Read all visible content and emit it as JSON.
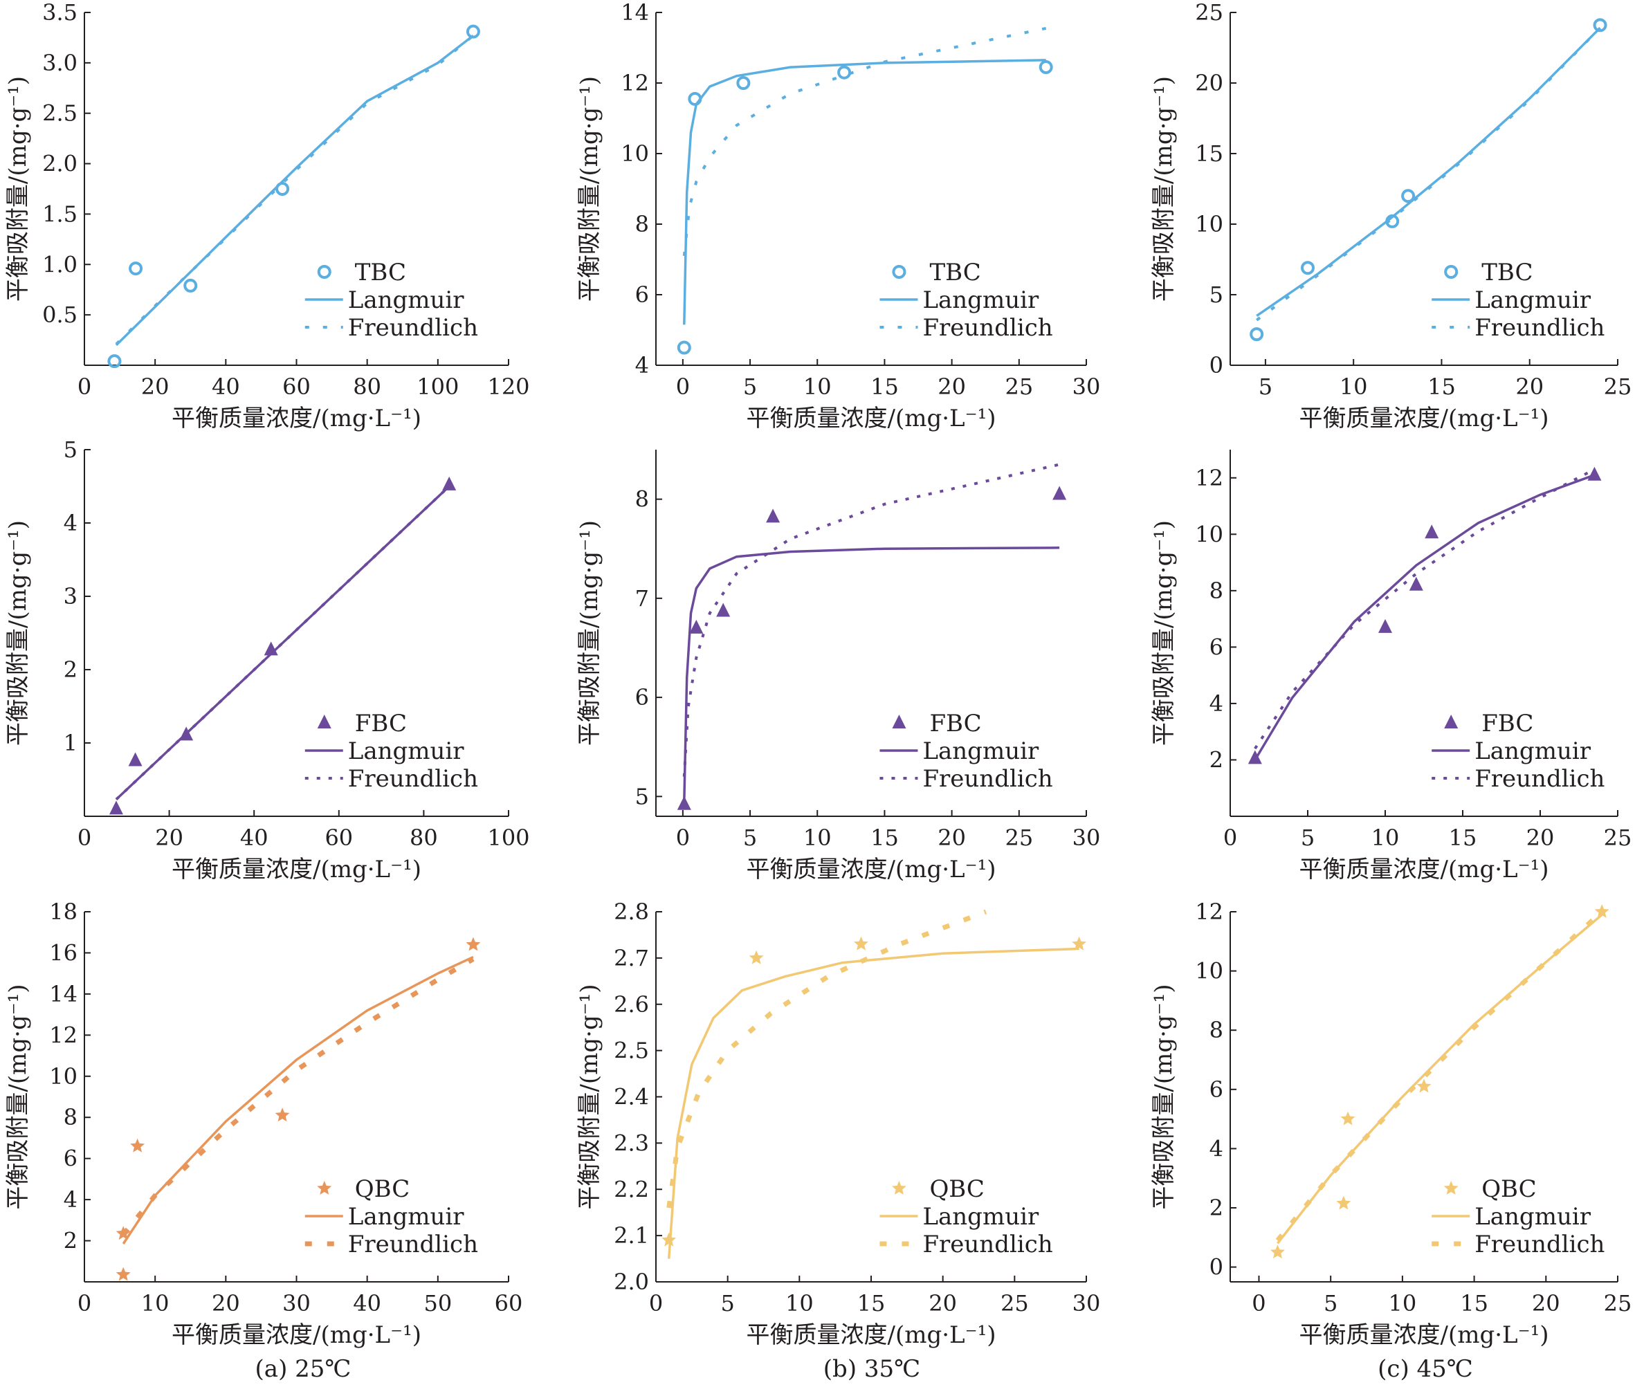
{
  "chart_data": [
    {
      "id": "tbc25",
      "type": "scatter",
      "xlabel": "平衡质量浓度/(mg·L⁻¹)",
      "ylabel": "平衡吸附量/(mg·g⁻¹)",
      "xlim": [
        0,
        120
      ],
      "ylim": [
        0,
        3.5
      ],
      "xticks": [
        0,
        20,
        40,
        60,
        80,
        100,
        120
      ],
      "yticks": [
        0.5,
        1.0,
        1.5,
        2.0,
        2.5,
        3.0,
        3.5
      ],
      "yticklabels": [
        "0.5",
        "1.0",
        "1.5",
        "2.0",
        "2.5",
        "3.0",
        "3.5"
      ],
      "marker": "circle",
      "color": "#5aaee0",
      "series": [
        {
          "name": "TBC",
          "x": [
            8.5,
            14.5,
            30,
            56,
            110
          ],
          "y": [
            0.04,
            0.96,
            0.79,
            1.75,
            3.31
          ]
        },
        {
          "name": "Langmuir",
          "x": [
            9,
            20,
            40,
            60,
            80,
            100,
            110
          ],
          "y": [
            0.2,
            0.58,
            1.27,
            1.96,
            2.62,
            3.0,
            3.27
          ]
        },
        {
          "name": "Freundlich",
          "x": [
            9,
            20,
            40,
            60,
            80,
            100,
            110
          ],
          "y": [
            0.21,
            0.59,
            1.26,
            1.94,
            2.6,
            2.98,
            3.27
          ]
        }
      ],
      "legend": [
        "TBC",
        "Langmuir",
        "Freundlich"
      ]
    },
    {
      "id": "tbc35",
      "type": "scatter",
      "xlabel": "平衡质量浓度/(mg·L⁻¹)",
      "ylabel": "平衡吸附量/(mg·g⁻¹)",
      "xlim": [
        -2,
        30
      ],
      "ylim": [
        4,
        14
      ],
      "xticks": [
        0,
        5,
        10,
        15,
        20,
        25,
        30
      ],
      "yticks": [
        4,
        6,
        8,
        10,
        12,
        14
      ],
      "marker": "circle",
      "color": "#5aaee0",
      "series": [
        {
          "name": "TBC",
          "x": [
            0.1,
            0.9,
            4.5,
            12,
            27
          ],
          "y": [
            4.5,
            11.55,
            12,
            12.3,
            12.45
          ]
        },
        {
          "name": "Langmuir",
          "x": [
            0.1,
            0.3,
            0.6,
            1,
            2,
            4,
            8,
            15,
            27
          ],
          "y": [
            5.15,
            8.9,
            10.6,
            11.4,
            11.9,
            12.2,
            12.45,
            12.57,
            12.65
          ]
        },
        {
          "name": "Freundlich",
          "x": [
            0.1,
            0.5,
            1,
            2,
            4,
            8,
            15,
            27
          ],
          "y": [
            7.1,
            8.5,
            9.2,
            9.9,
            10.8,
            11.7,
            12.6,
            13.55
          ]
        }
      ],
      "legend": [
        "TBC",
        "Langmuir",
        "Freundlich"
      ]
    },
    {
      "id": "tbc45",
      "type": "scatter",
      "xlabel": "平衡质量浓度/(mg·L⁻¹)",
      "ylabel": "平衡吸附量/(mg·g⁻¹)",
      "xlim": [
        3,
        25
      ],
      "ylim": [
        0,
        25
      ],
      "xticks": [
        5,
        10,
        15,
        20,
        25
      ],
      "yticks": [
        0,
        5,
        10,
        15,
        20,
        25
      ],
      "marker": "circle",
      "color": "#5aaee0",
      "series": [
        {
          "name": "TBC",
          "x": [
            4.5,
            7.4,
            12.2,
            13.1,
            24
          ],
          "y": [
            2.2,
            6.9,
            10.2,
            12,
            24.1
          ]
        },
        {
          "name": "Langmuir",
          "x": [
            4.5,
            8,
            12,
            16,
            20,
            24
          ],
          "y": [
            3.5,
            6.5,
            10.3,
            14.4,
            18.9,
            23.9
          ]
        },
        {
          "name": "Freundlich",
          "x": [
            4.5,
            8,
            12,
            16,
            20,
            24
          ],
          "y": [
            3.2,
            6.4,
            10.2,
            14.3,
            18.8,
            23.9
          ]
        }
      ],
      "legend": [
        "TBC",
        "Langmuir",
        "Freundlich"
      ]
    },
    {
      "id": "fbc25",
      "type": "scatter",
      "xlabel": "平衡质量浓度/(mg·L⁻¹)",
      "ylabel": "平衡吸附量/(mg·g⁻¹)",
      "xlim": [
        0,
        100
      ],
      "ylim": [
        0,
        5
      ],
      "xticks": [
        0,
        20,
        40,
        60,
        80,
        100
      ],
      "yticks": [
        1,
        2,
        3,
        4,
        5
      ],
      "marker": "triangle",
      "color": "#6b4a9b",
      "series": [
        {
          "name": "FBC",
          "x": [
            7.5,
            12,
            24,
            44,
            86
          ],
          "y": [
            0.1,
            0.76,
            1.11,
            2.27,
            4.52
          ]
        },
        {
          "name": "Langmuir",
          "x": [
            7.5,
            86
          ],
          "y": [
            0.23,
            4.5
          ]
        },
        {
          "name": "Freundlich",
          "x": [
            7.5,
            86
          ],
          "y": [
            0.23,
            4.5
          ]
        }
      ],
      "legend": [
        "FBC",
        "Langmuir",
        "Freundlich"
      ]
    },
    {
      "id": "fbc35",
      "type": "scatter",
      "xlabel": "平衡质量浓度/(mg·L⁻¹)",
      "ylabel": "平衡吸附量/(mg·g⁻¹)",
      "xlim": [
        -2,
        30
      ],
      "ylim": [
        4.8,
        8.5
      ],
      "xticks": [
        0,
        5,
        10,
        15,
        20,
        25,
        30
      ],
      "yticks": [
        5,
        6,
        7,
        8
      ],
      "marker": "triangle",
      "color": "#6b4a9b",
      "series": [
        {
          "name": "FBC",
          "x": [
            0.1,
            1,
            3,
            6.7,
            28
          ],
          "y": [
            4.92,
            6.7,
            6.87,
            7.82,
            8.05
          ]
        },
        {
          "name": "Langmuir",
          "x": [
            0.1,
            0.3,
            0.6,
            1,
            2,
            4,
            8,
            15,
            28
          ],
          "y": [
            4.95,
            6.2,
            6.85,
            7.1,
            7.3,
            7.42,
            7.47,
            7.5,
            7.51
          ]
        },
        {
          "name": "Freundlich",
          "x": [
            0.1,
            0.4,
            1,
            2,
            4,
            8,
            15,
            28
          ],
          "y": [
            5.2,
            5.9,
            6.4,
            6.85,
            7.25,
            7.6,
            7.95,
            8.35
          ]
        }
      ],
      "legend": [
        "FBC",
        "Langmuir",
        "Freundlich"
      ]
    },
    {
      "id": "fbc45",
      "type": "scatter",
      "xlabel": "平衡质量浓度/(mg·L⁻¹)",
      "ylabel": "平衡吸附量/(mg·g⁻¹)",
      "xlim": [
        0,
        25
      ],
      "ylim": [
        0,
        13
      ],
      "xticks": [
        0,
        5,
        10,
        15,
        20,
        25
      ],
      "yticks": [
        2,
        4,
        6,
        8,
        10,
        12
      ],
      "marker": "triangle",
      "color": "#6b4a9b",
      "series": [
        {
          "name": "FBC",
          "x": [
            1.6,
            10,
            12,
            13,
            23.5
          ],
          "y": [
            2.05,
            6.7,
            8.2,
            10.05,
            12.1
          ]
        },
        {
          "name": "Langmuir",
          "x": [
            1.6,
            4,
            8,
            12,
            16,
            20,
            23.5
          ],
          "y": [
            2,
            4.2,
            6.9,
            8.9,
            10.4,
            11.4,
            12.1
          ]
        },
        {
          "name": "Freundlich",
          "x": [
            1.6,
            4,
            8,
            12,
            16,
            20,
            23.5
          ],
          "y": [
            2.4,
            4.4,
            6.8,
            8.6,
            10.1,
            11.3,
            12.3
          ]
        }
      ],
      "legend": [
        "FBC",
        "Langmuir",
        "Freundlich"
      ]
    },
    {
      "id": "qbc25",
      "type": "scatter",
      "xlabel": "平衡质量浓度/(mg·L⁻¹)",
      "ylabel": "平衡吸附量/(mg·g⁻¹)",
      "xlim": [
        0,
        60
      ],
      "ylim": [
        0,
        18
      ],
      "xticks": [
        0,
        10,
        20,
        30,
        40,
        50,
        60
      ],
      "yticks": [
        2,
        4,
        6,
        8,
        10,
        12,
        14,
        16,
        18
      ],
      "marker": "star",
      "color": "#e8955a",
      "series": [
        {
          "name": "QBC",
          "x": [
            5.5,
            5.5,
            7.5,
            28,
            55
          ],
          "y": [
            2.35,
            0.35,
            6.6,
            8.1,
            16.4
          ]
        },
        {
          "name": "Langmuir",
          "x": [
            5.5,
            10,
            20,
            30,
            40,
            50,
            55
          ],
          "y": [
            1.85,
            4.2,
            7.8,
            10.8,
            13.2,
            15.0,
            15.8
          ]
        },
        {
          "name": "Freundlich",
          "x": [
            5.5,
            10,
            20,
            30,
            40,
            50,
            55
          ],
          "y": [
            2.3,
            4.2,
            7.4,
            10.3,
            12.6,
            14.7,
            15.7
          ]
        }
      ],
      "legend": [
        "QBC",
        "Langmuir",
        "Freundlich"
      ]
    },
    {
      "id": "qbc35",
      "type": "scatter",
      "xlabel": "平衡质量浓度/(mg·L⁻¹)",
      "ylabel": "平衡吸附量/(mg·g⁻¹)",
      "xlim": [
        0,
        30
      ],
      "ylim": [
        2.0,
        2.8
      ],
      "xticks": [
        0,
        5,
        10,
        15,
        20,
        25,
        30
      ],
      "yticks": [
        2.0,
        2.1,
        2.2,
        2.3,
        2.4,
        2.5,
        2.6,
        2.7,
        2.8
      ],
      "yticklabels": [
        "2.0",
        "2.1",
        "2.2",
        "2.3",
        "2.4",
        "2.5",
        "2.6",
        "2.7",
        "2.8"
      ],
      "marker": "star",
      "color": "#f2c872",
      "series": [
        {
          "name": "QBC",
          "x": [
            0.9,
            7,
            14.3,
            29.5
          ],
          "y": [
            2.09,
            2.7,
            2.73,
            2.73
          ]
        },
        {
          "name": "Langmuir",
          "x": [
            0.9,
            1.5,
            2.5,
            4,
            6,
            9,
            13,
            20,
            29.5
          ],
          "y": [
            2.05,
            2.31,
            2.47,
            2.57,
            2.63,
            2.66,
            2.69,
            2.71,
            2.72
          ]
        },
        {
          "name": "Freundlich",
          "x": [
            0.9,
            1.5,
            3,
            5,
            8,
            12,
            17,
            23
          ],
          "y": [
            2.16,
            2.29,
            2.41,
            2.5,
            2.58,
            2.66,
            2.73,
            2.8
          ]
        }
      ],
      "legend": [
        "QBC",
        "Langmuir",
        "Freundlich"
      ]
    },
    {
      "id": "qbc45",
      "type": "scatter",
      "xlabel": "平衡质量浓度/(mg·L⁻¹)",
      "ylabel": "平衡吸附量/(mg·g⁻¹)",
      "xlim": [
        -2,
        25
      ],
      "ylim": [
        -0.5,
        12
      ],
      "xticks": [
        0,
        5,
        10,
        15,
        20,
        25
      ],
      "yticks": [
        0,
        2,
        4,
        6,
        8,
        10,
        12
      ],
      "marker": "star",
      "color": "#f2c872",
      "series": [
        {
          "name": "QBC",
          "x": [
            1.3,
            5.9,
            6.2,
            11.5,
            23.9
          ],
          "y": [
            0.5,
            2.15,
            5,
            6.1,
            12
          ]
        },
        {
          "name": "Langmuir",
          "x": [
            1.3,
            5,
            10,
            15,
            20,
            23.9
          ],
          "y": [
            0.8,
            3.1,
            5.75,
            8.2,
            10.3,
            11.9
          ]
        },
        {
          "name": "Freundlich",
          "x": [
            1.3,
            5,
            10,
            15,
            20,
            23.9
          ],
          "y": [
            0.9,
            3.1,
            5.7,
            8.1,
            10.3,
            12
          ]
        }
      ],
      "legend": [
        "QBC",
        "Langmuir",
        "Freundlich"
      ]
    }
  ],
  "captions": [
    "(a) 25℃",
    "(b) 35℃",
    "(c) 45℃"
  ]
}
